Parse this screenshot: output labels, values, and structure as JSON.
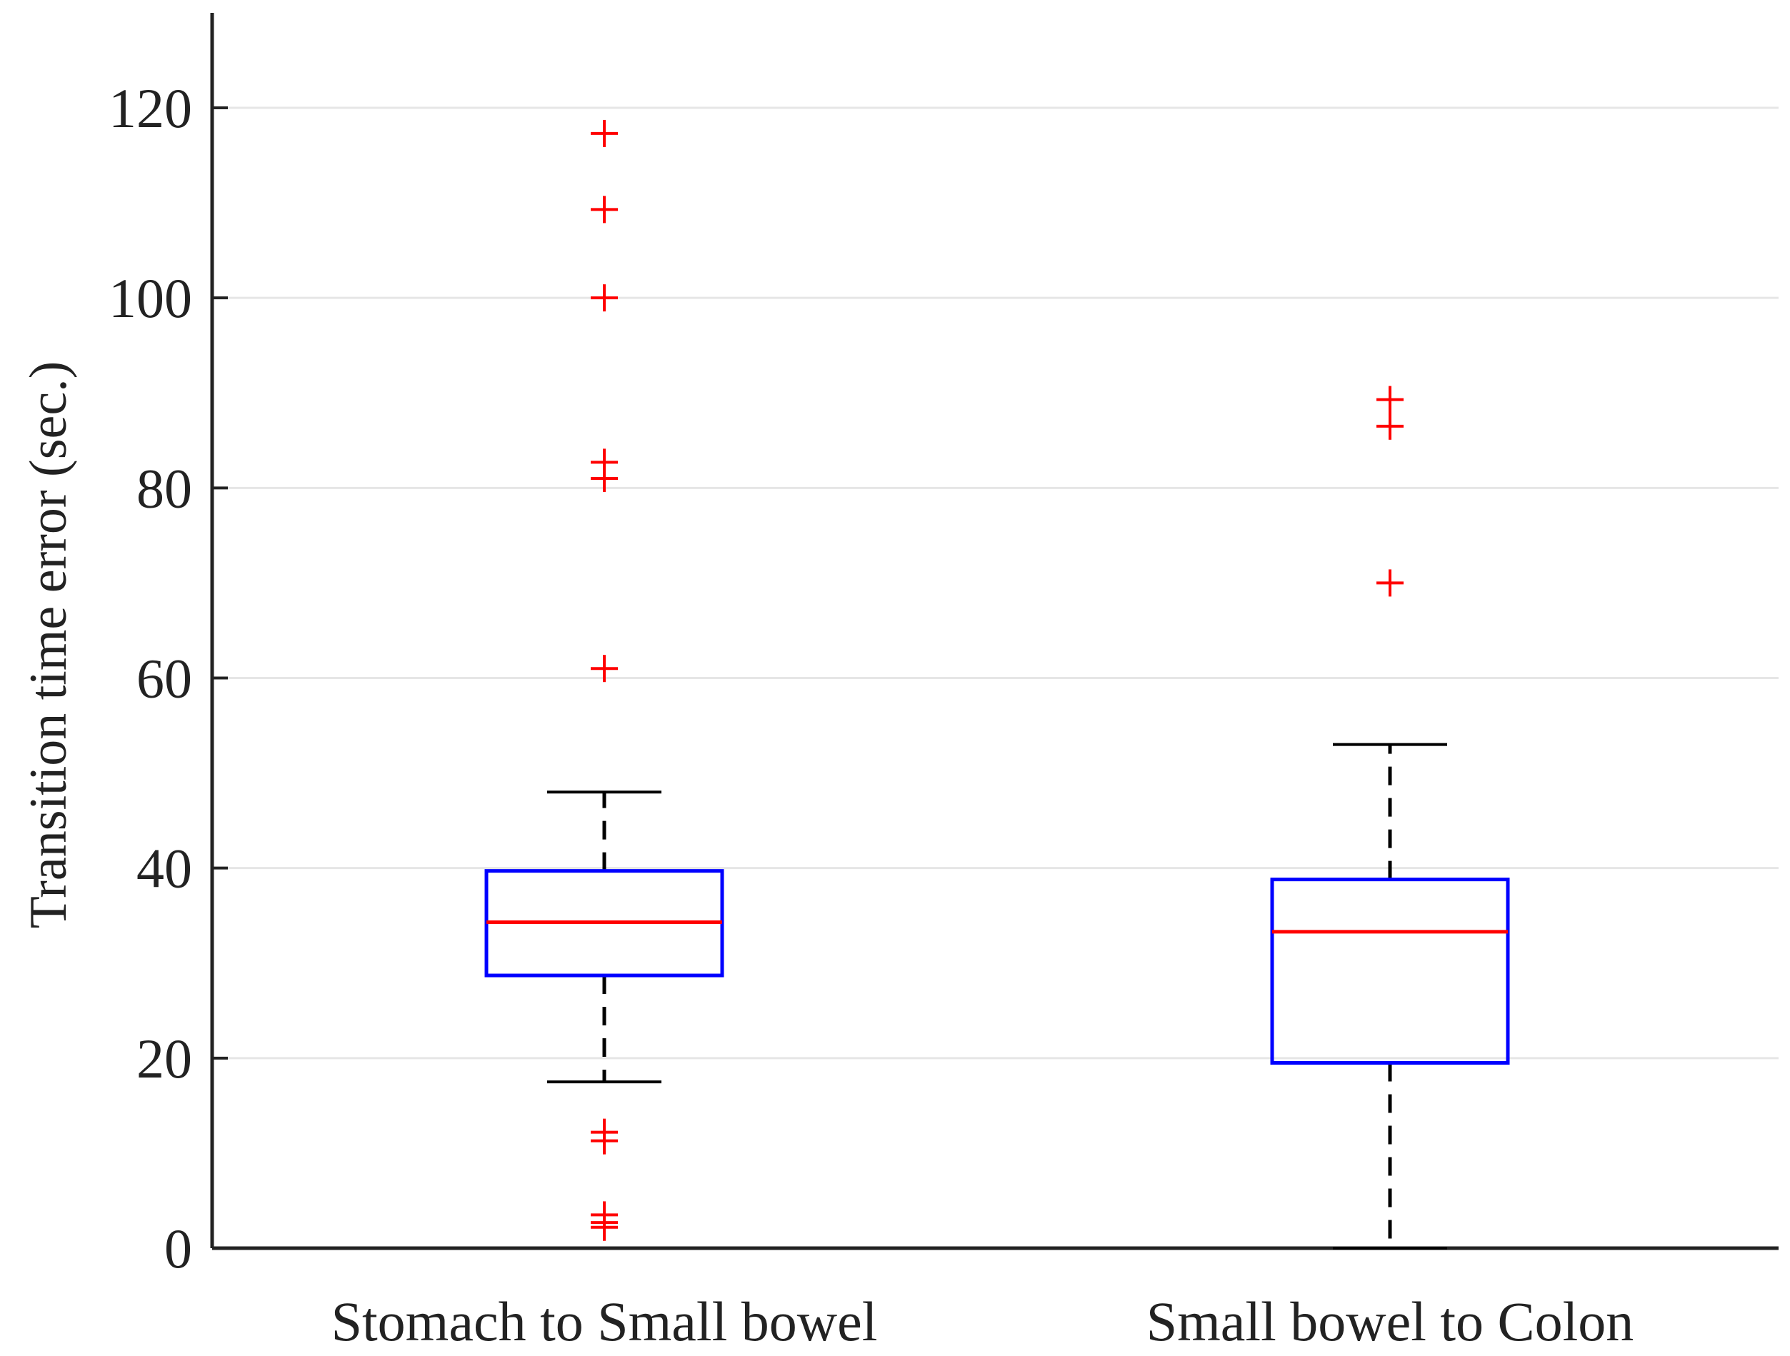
{
  "chart_data": {
    "type": "box",
    "title": "",
    "xlabel": "",
    "ylabel": "Transition time error (sec.)",
    "ylim": [
      0,
      130
    ],
    "yticks": [
      0,
      20,
      40,
      60,
      80,
      100,
      120
    ],
    "ytick_labels": [
      "0",
      "20",
      "40",
      "60",
      "80",
      "100",
      "120"
    ],
    "grid": "horizontal",
    "categories": [
      "Stomach to Small bowel",
      "Small bowel to Colon"
    ],
    "boxes": [
      {
        "category": "Stomach to Small bowel",
        "whisker_low": 17.5,
        "q1": 28.7,
        "median": 34.3,
        "q3": 39.7,
        "whisker_high": 48,
        "outliers": [
          117.3,
          109.3,
          100,
          82.7,
          81,
          61,
          12.2,
          11.3,
          3.5,
          2.7,
          2.2
        ]
      },
      {
        "category": "Small bowel to Colon",
        "whisker_low": 0,
        "q1": 19.5,
        "median": 33.3,
        "q3": 38.8,
        "whisker_high": 53,
        "outliers": [
          89.3,
          86.5,
          70
        ]
      }
    ],
    "colors": {
      "box": "#0000ff",
      "median": "#ff0000",
      "outlier": "#ff0000",
      "whisker": "#000000",
      "axis": "#222222",
      "grid": "#e6e6e6"
    }
  }
}
